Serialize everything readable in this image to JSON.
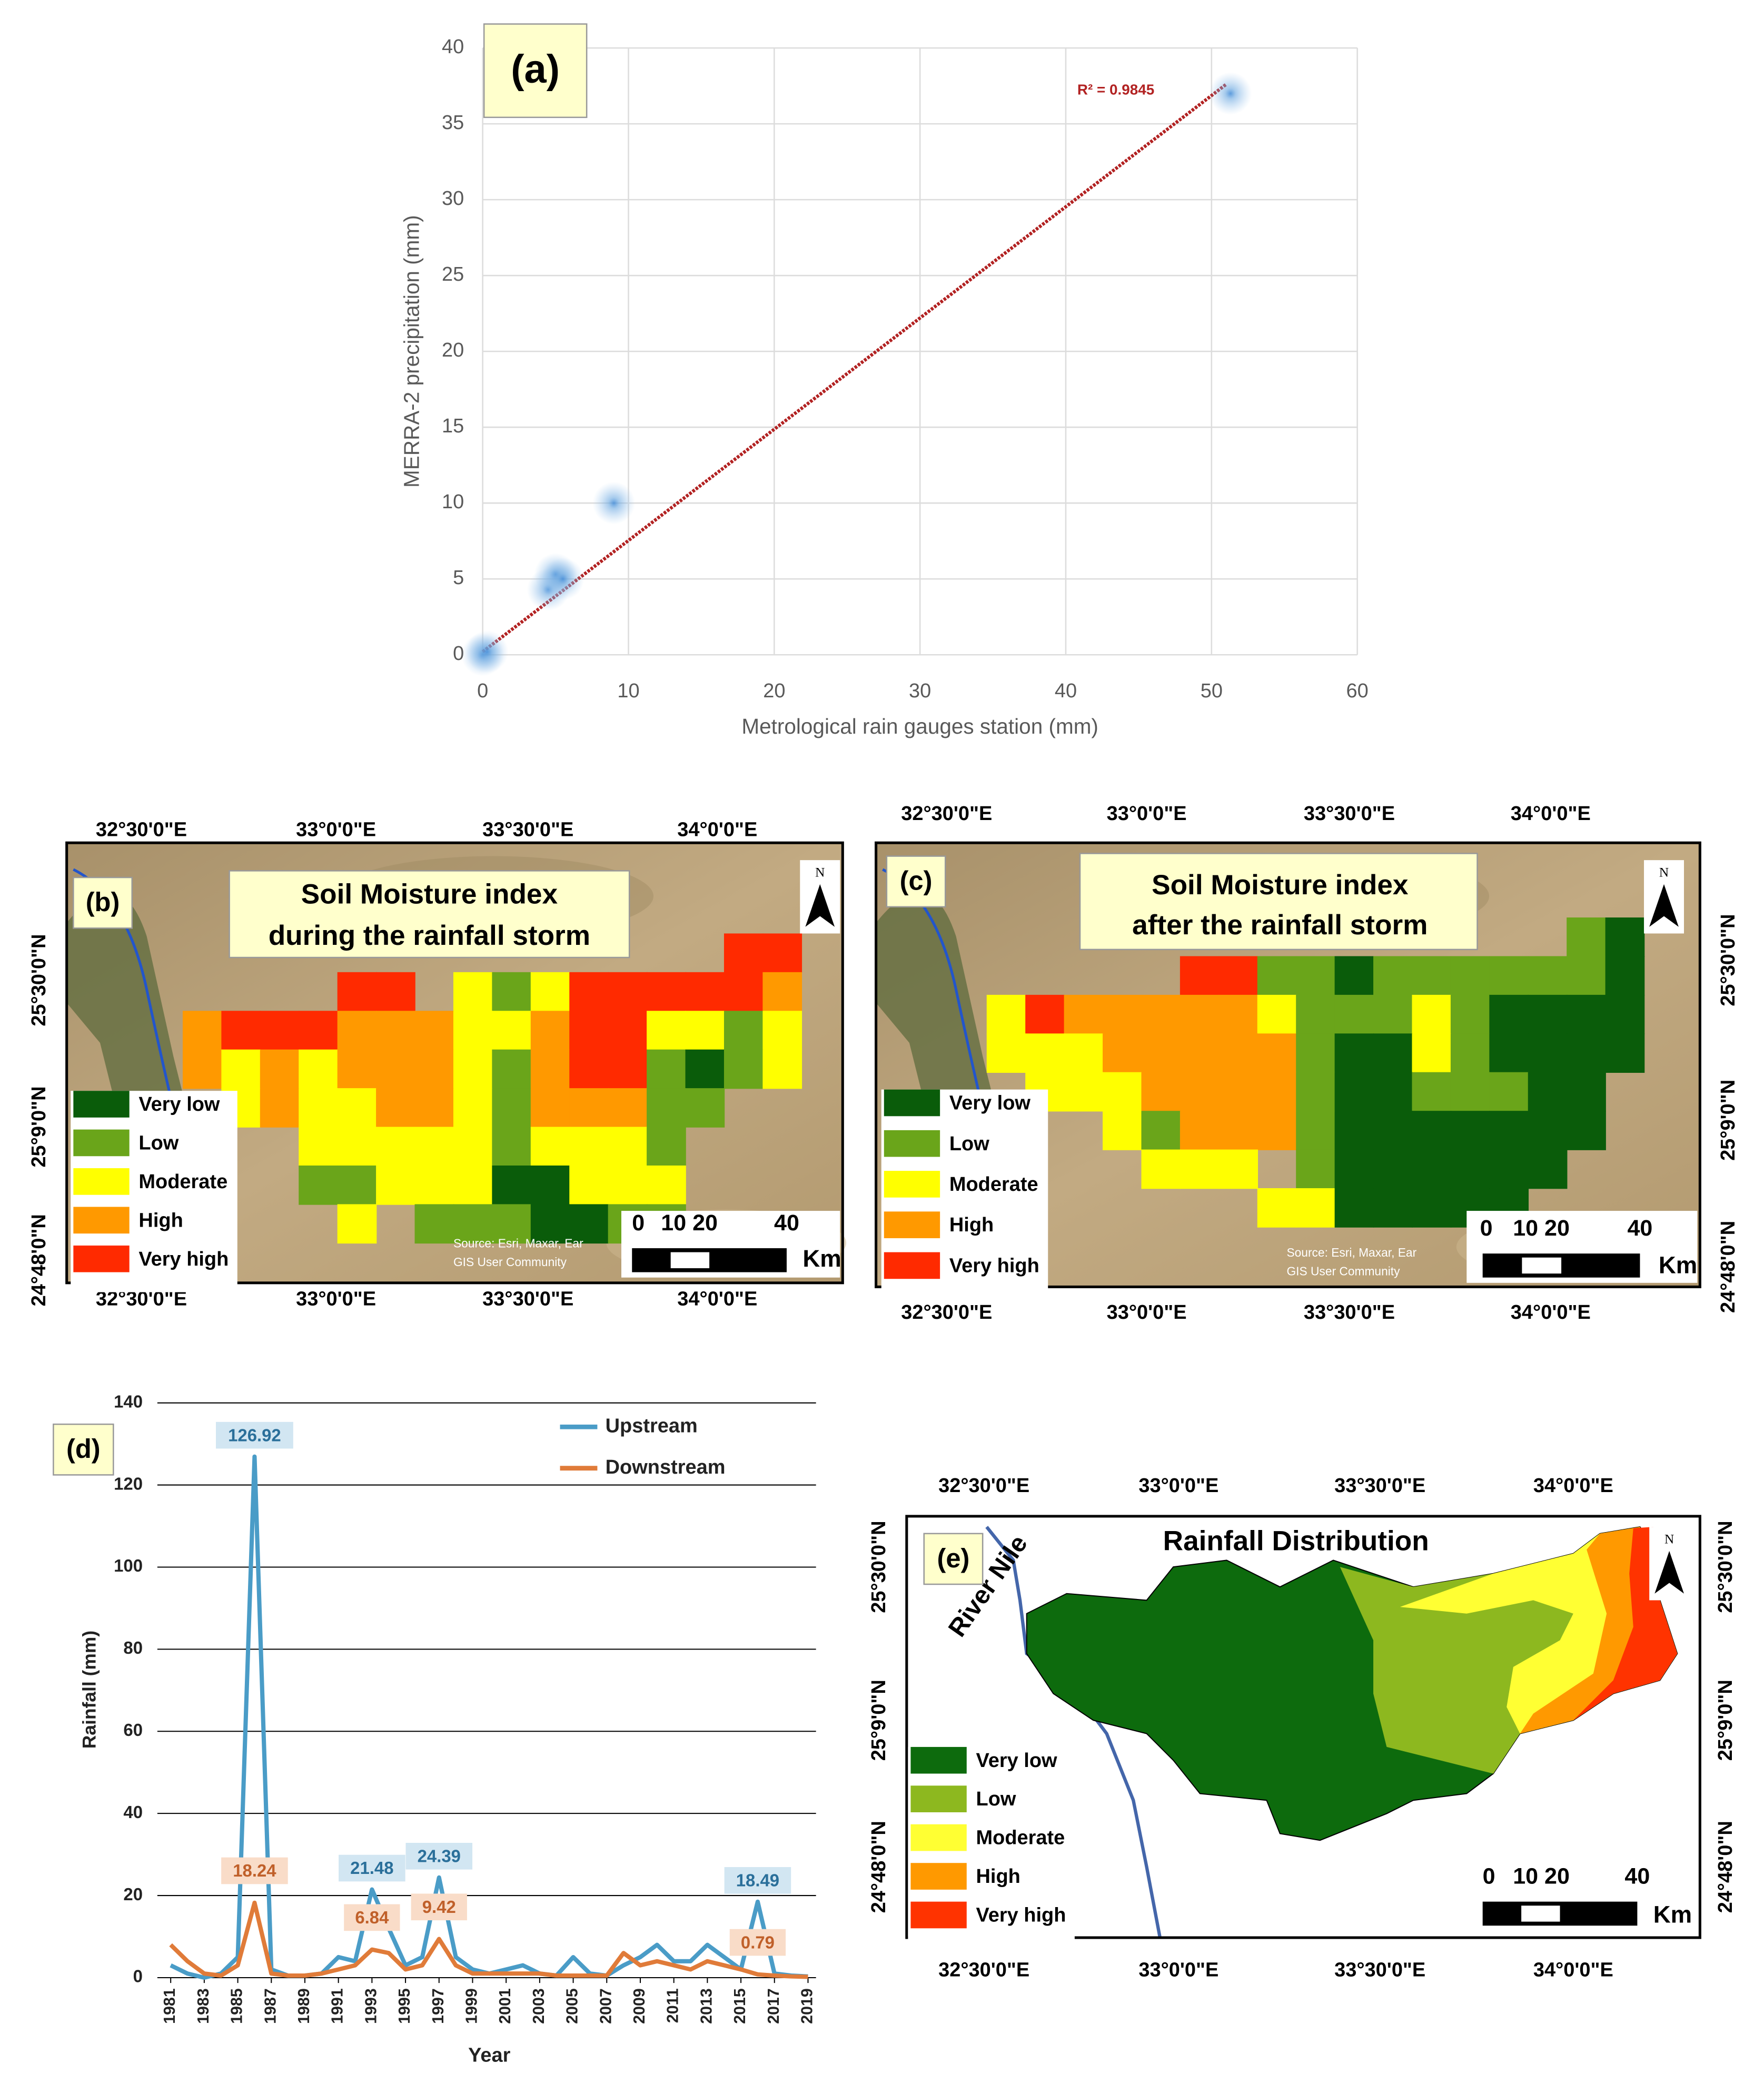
{
  "chart_data": [
    {
      "type": "scatter",
      "label": "(a)",
      "x": [
        0,
        0.3,
        4.5,
        5,
        5.5,
        9,
        51.3
      ],
      "y": [
        0,
        0.2,
        4.3,
        5.3,
        5,
        10,
        37
      ],
      "color": "#6aa7e0",
      "xlabel": "Metrological rain gauges station (mm)",
      "ylabel": "MERRA-2 precipitation (mm)",
      "xlim": [
        0,
        60
      ],
      "xticks": [
        0,
        10,
        20,
        30,
        40,
        50,
        60
      ],
      "ylim": [
        0,
        40
      ],
      "yticks": [
        0,
        5,
        10,
        15,
        20,
        25,
        30,
        35,
        40
      ],
      "grid": true,
      "trendline": {
        "x": [
          0,
          51
        ],
        "y": [
          0.2,
          37.6
        ],
        "color": "#b22222",
        "annotation": "R² = 0.9845"
      }
    },
    {
      "type": "line",
      "label": "(d)",
      "x": [
        1981,
        1982,
        1983,
        1984,
        1985,
        1986,
        1987,
        1988,
        1989,
        1990,
        1991,
        1992,
        1993,
        1994,
        1995,
        1996,
        1997,
        1998,
        1999,
        2000,
        2001,
        2002,
        2003,
        2004,
        2005,
        2006,
        2007,
        2008,
        2009,
        2010,
        2011,
        2012,
        2013,
        2014,
        2015,
        2016,
        2017,
        2018,
        2019
      ],
      "series": [
        {
          "name": "Upstream",
          "color": "#4a9cc7",
          "label_color": "#2a6f9a",
          "label_fill": "#d2e6f2",
          "labeled": [
            1986,
            1993,
            1997,
            2016
          ],
          "values": [
            3,
            1,
            0,
            1,
            5,
            126.92,
            2,
            0.5,
            0.5,
            1,
            5,
            4,
            21.48,
            12,
            3,
            5,
            24.39,
            5,
            2,
            1,
            2,
            3,
            1,
            0.5,
            5,
            1,
            0.5,
            3,
            5,
            8,
            4,
            4,
            8,
            5,
            2,
            18.49,
            1,
            0.5,
            0.3
          ]
        },
        {
          "name": "Downstream",
          "color": "#e07b39",
          "label_color": "#c0602a",
          "label_fill": "#f9dcc8",
          "labeled": [
            1986,
            1993,
            1997,
            2016
          ],
          "values": [
            8,
            4,
            1,
            0.5,
            3,
            18.24,
            1,
            0.5,
            0.5,
            1,
            2,
            3,
            6.84,
            6,
            2,
            3,
            9.42,
            3,
            1,
            1,
            1,
            1,
            1,
            0.5,
            0.5,
            0.5,
            0.5,
            6,
            3,
            4,
            3,
            2,
            4,
            3,
            2,
            0.79,
            0.5,
            0.3,
            0.2
          ]
        }
      ],
      "xlabel": "Year",
      "ylabel": "Rainfall (mm)",
      "xlim": [
        1981,
        2019
      ],
      "xticks": [
        1981,
        1983,
        1985,
        1987,
        1989,
        1991,
        1993,
        1995,
        1997,
        1999,
        2001,
        2003,
        2005,
        2007,
        2009,
        2011,
        2013,
        2015,
        2017,
        2019
      ],
      "ylim": [
        0,
        140
      ],
      "yticks": [
        0,
        20,
        40,
        60,
        80,
        100,
        120,
        140
      ],
      "grid": true,
      "legend": "upper right"
    }
  ],
  "maps": [
    {
      "label": "(b)",
      "title": [
        "Soil Moisture index",
        "during the rainfall storm"
      ],
      "lon_labels": [
        "32°30'0\"E",
        "33°0'0\"E",
        "33°30'0\"E",
        "34°0'0\"E"
      ],
      "lat_labels": [
        "25°30'0\"N",
        "25°9'0\"N",
        "24°48'0\"N"
      ],
      "legend": [
        {
          "name": "Very low",
          "color": "#0a5c0a"
        },
        {
          "name": "Low",
          "color": "#6aa51a"
        },
        {
          "name": "Moderate",
          "color": "#ffff00"
        },
        {
          "name": "High",
          "color": "#ff9900"
        },
        {
          "name": "Very high",
          "color": "#ff2a00"
        }
      ],
      "scale_labels": [
        "0",
        "10 20",
        "40"
      ],
      "scale_unit": "Km",
      "north": "N",
      "credit": [
        "Source: Esri, Maxar, Ear",
        "GIS User Community"
      ]
    },
    {
      "label": "(c)",
      "title": [
        "Soil Moisture index",
        "after the rainfall storm"
      ],
      "lon_labels": [
        "32°30'0\"E",
        "33°0'0\"E",
        "33°30'0\"E",
        "34°0'0\"E"
      ],
      "lat_labels": [
        "25°30'0\"N",
        "25°9'0\"N",
        "24°48'0\"N"
      ],
      "legend": [
        {
          "name": "Very low",
          "color": "#0a5c0a"
        },
        {
          "name": "Low",
          "color": "#6aa51a"
        },
        {
          "name": "Moderate",
          "color": "#ffff00"
        },
        {
          "name": "High",
          "color": "#ff9900"
        },
        {
          "name": "Very high",
          "color": "#ff2a00"
        }
      ],
      "scale_labels": [
        "0",
        "10 20",
        "40"
      ],
      "scale_unit": "Km",
      "north": "N",
      "credit": [
        "Source: Esri, Maxar, Ear",
        "GIS User Community"
      ]
    },
    {
      "label": "(e)",
      "title": [
        "Rainfall Distribution"
      ],
      "lon_labels": [
        "32°30'0\"E",
        "33°0'0\"E",
        "33°30'0\"E",
        "34°0'0\"E"
      ],
      "lat_labels": [
        "25°30'0\"N",
        "25°9'0\"N",
        "24°48'0\"N"
      ],
      "legend": [
        {
          "name": "Very low",
          "color": "#0d6b0d"
        },
        {
          "name": "Low",
          "color": "#8db81f"
        },
        {
          "name": "Moderate",
          "color": "#ffff33"
        },
        {
          "name": "High",
          "color": "#ff9900"
        },
        {
          "name": "Very high",
          "color": "#ff3300"
        }
      ],
      "scale_labels": [
        "0",
        "10 20",
        "40"
      ],
      "scale_unit": "Km",
      "north": "N",
      "river_label": "River Nile"
    }
  ]
}
